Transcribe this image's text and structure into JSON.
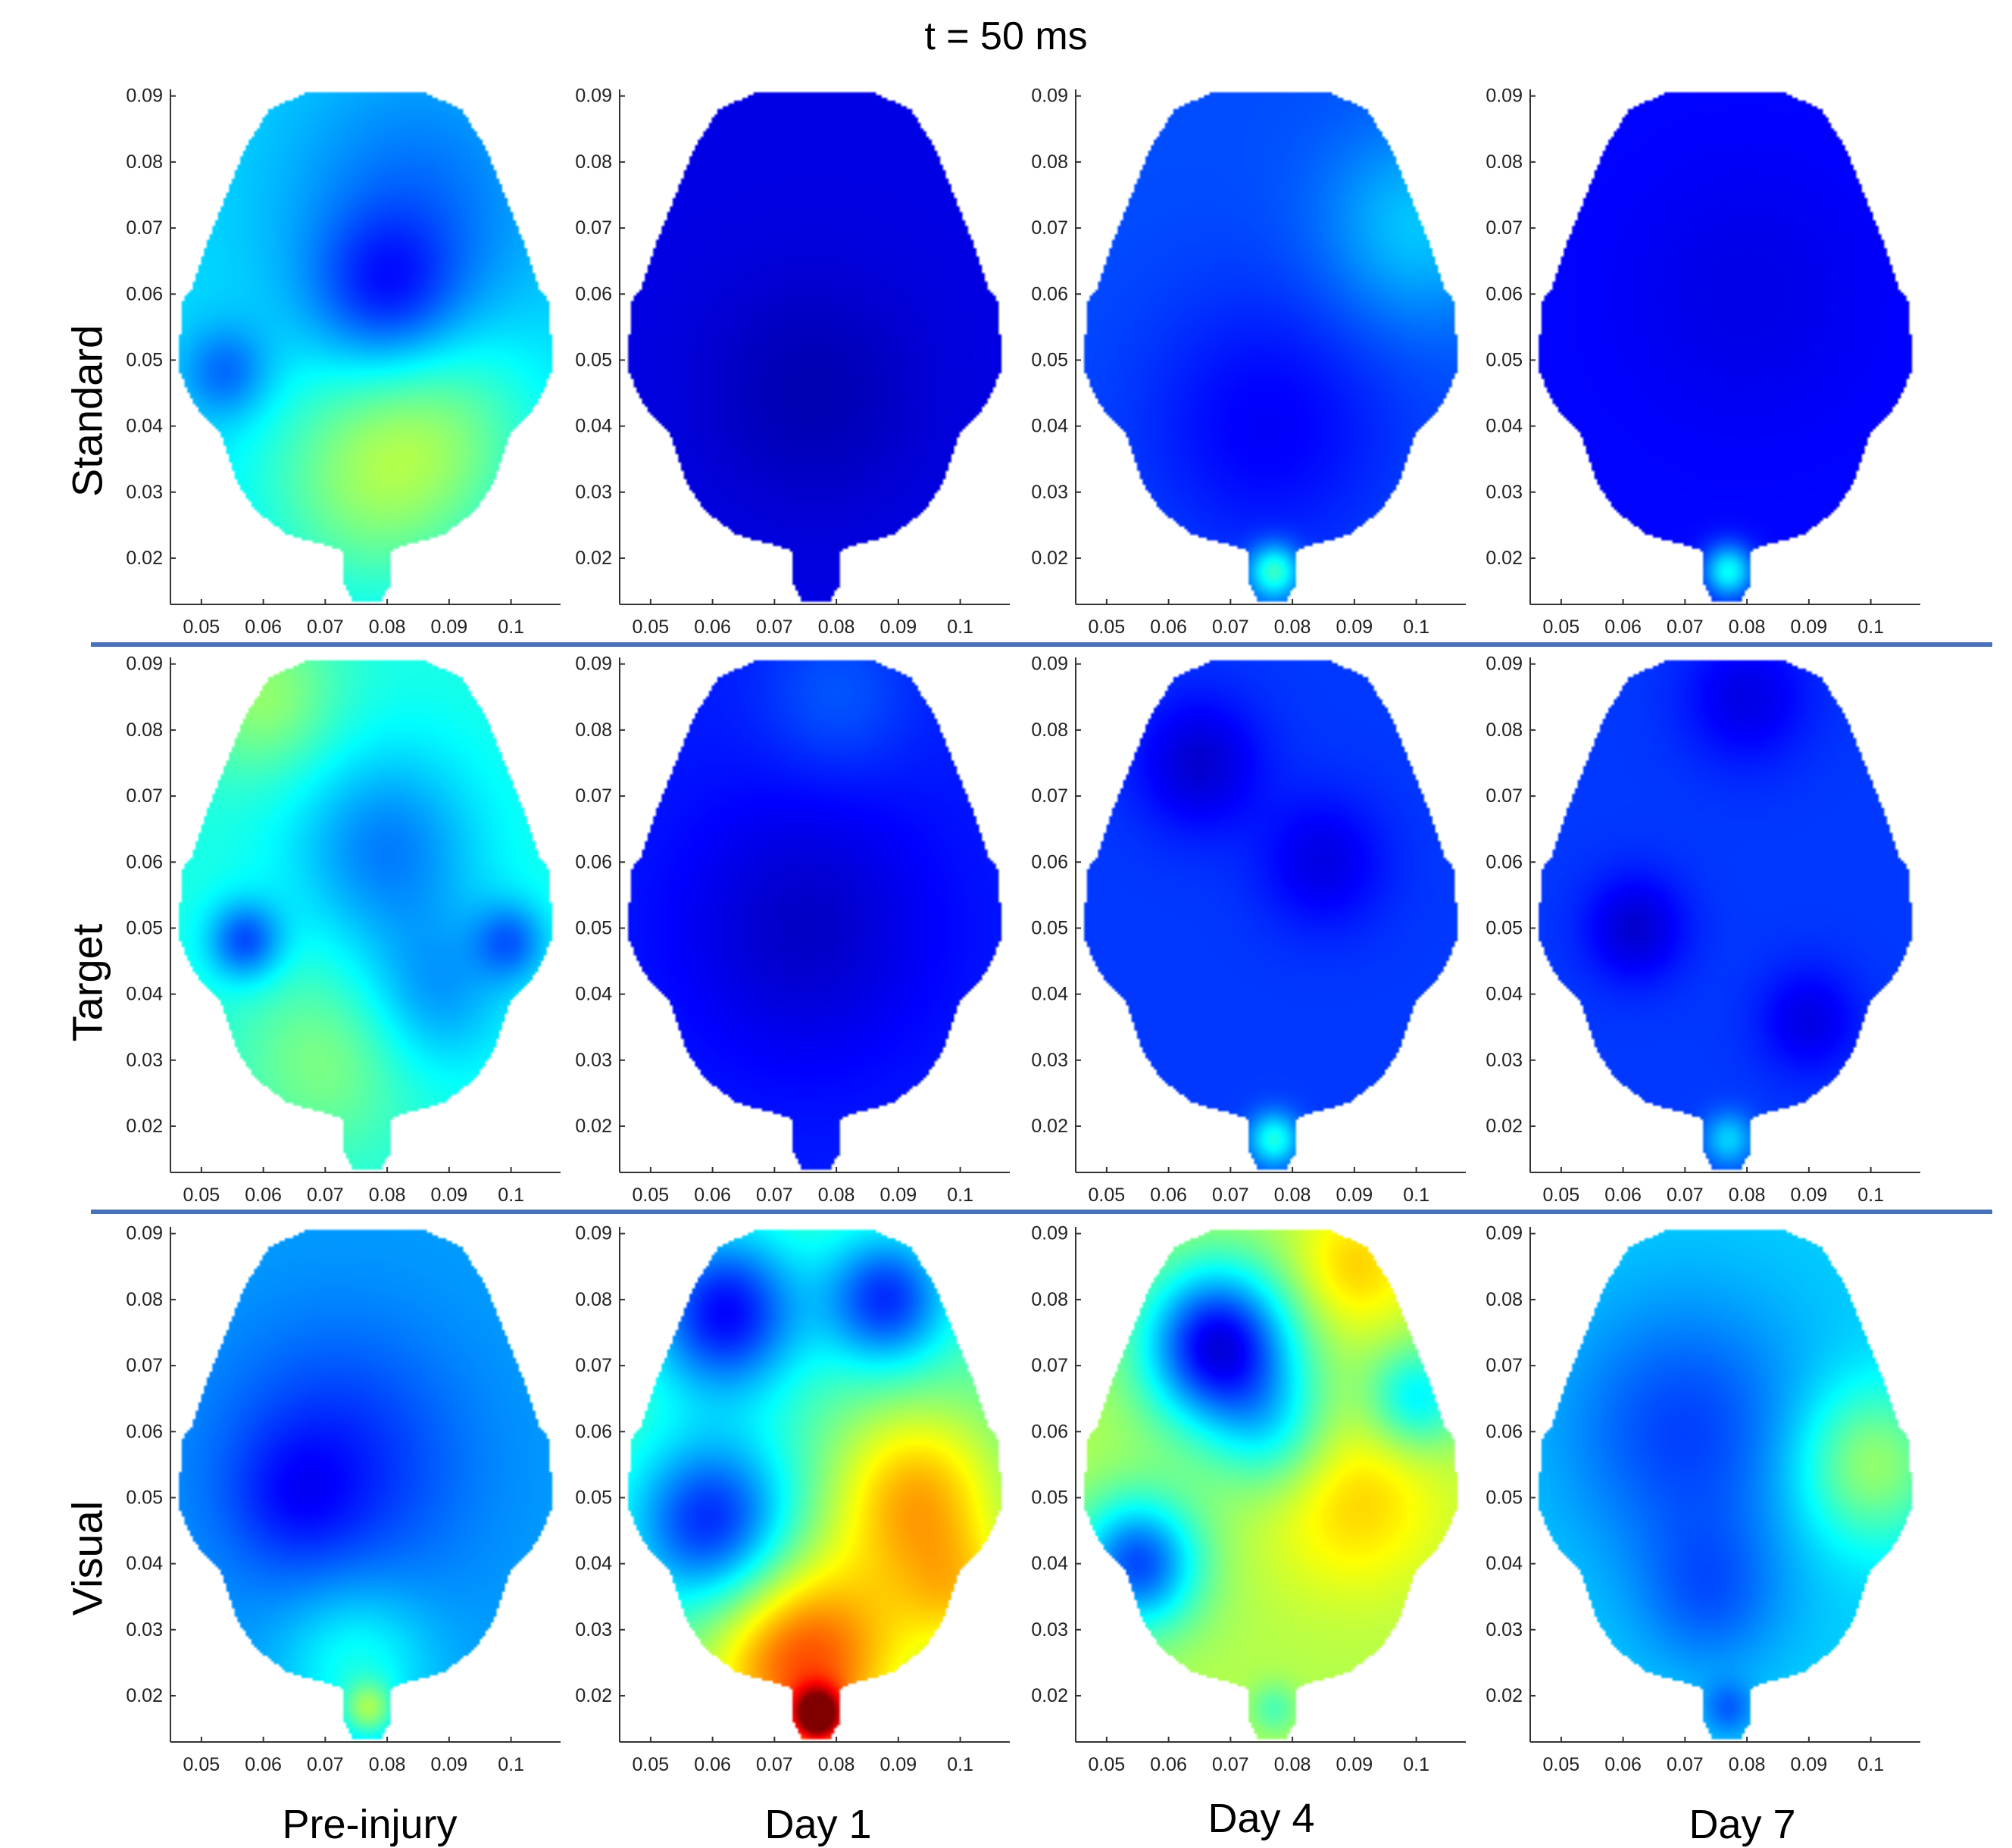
{
  "figure": {
    "title": "t = 50 ms",
    "rows": [
      {
        "label": "Standard"
      },
      {
        "label": "Target"
      },
      {
        "label": "Visual"
      }
    ],
    "columns": [
      {
        "label": "Pre-injury"
      },
      {
        "label": "Day 1"
      },
      {
        "label": "Day 4"
      },
      {
        "label": "Day 7"
      }
    ],
    "axes": {
      "x_ticks": [
        "0.05",
        "0.06",
        "0.07",
        "0.08",
        "0.09",
        "0.1"
      ],
      "y_ticks": [
        "0.09",
        "0.08",
        "0.07",
        "0.06",
        "0.05",
        "0.04",
        "0.03",
        "0.02"
      ],
      "xlim": [
        0.045,
        0.108
      ],
      "ylim": [
        0.013,
        0.091
      ]
    },
    "colors": {
      "divider": "#4a72b8",
      "colormap": [
        "#00008f",
        "#0000ff",
        "#0080ff",
        "#00ffff",
        "#80ff80",
        "#ffff00"
      ]
    },
    "maps": [
      [
        {
          "base": 0.34,
          "blobs": [
            [
              0.085,
              0.075,
              0.022,
              -0.1
            ],
            [
              0.077,
              0.032,
              0.018,
              0.16
            ],
            [
              0.09,
              0.04,
              0.016,
              0.1
            ],
            [
              0.08,
              0.06,
              0.012,
              -0.16
            ],
            [
              0.054,
              0.048,
              0.007,
              -0.12
            ]
          ]
        },
        {
          "base": 0.1,
          "blobs": [
            [
              0.076,
              0.045,
              0.018,
              -0.05
            ]
          ]
        },
        {
          "base": 0.2,
          "blobs": [
            [
              0.076,
              0.04,
              0.02,
              -0.08
            ],
            [
              0.1,
              0.07,
              0.015,
              0.12
            ],
            [
              0.077,
              0.018,
              0.004,
              0.25
            ]
          ]
        },
        {
          "base": 0.13,
          "blobs": [
            [
              0.08,
              0.06,
              0.02,
              -0.03
            ],
            [
              0.077,
              0.018,
              0.004,
              0.25
            ]
          ]
        }
      ],
      [
        {
          "base": 0.4,
          "blobs": [
            [
              0.06,
              0.085,
              0.012,
              0.12
            ],
            [
              0.08,
              0.062,
              0.015,
              -0.15
            ],
            [
              0.057,
              0.048,
              0.006,
              -0.2
            ],
            [
              0.088,
              0.04,
              0.012,
              -0.12
            ],
            [
              0.1,
              0.048,
              0.006,
              -0.15
            ],
            [
              0.07,
              0.03,
              0.014,
              0.1
            ]
          ]
        },
        {
          "base": 0.15,
          "blobs": [
            [
              0.08,
              0.085,
              0.012,
              0.06
            ],
            [
              0.075,
              0.05,
              0.02,
              -0.08
            ]
          ]
        },
        {
          "base": 0.18,
          "blobs": [
            [
              0.065,
              0.075,
              0.01,
              -0.1
            ],
            [
              0.085,
              0.06,
              0.01,
              -0.08
            ],
            [
              0.077,
              0.018,
              0.004,
              0.22
            ]
          ]
        },
        {
          "base": 0.18,
          "blobs": [
            [
              0.062,
              0.05,
              0.008,
              -0.1
            ],
            [
              0.09,
              0.036,
              0.008,
              -0.08
            ],
            [
              0.08,
              0.085,
              0.01,
              -0.08
            ],
            [
              0.077,
              0.018,
              0.004,
              0.15
            ]
          ]
        }
      ],
      [
        {
          "base": 0.28,
          "blobs": [
            [
              0.072,
              0.055,
              0.02,
              -0.12
            ],
            [
              0.065,
              0.05,
              0.01,
              -0.06
            ],
            [
              0.075,
              0.025,
              0.012,
              0.12
            ],
            [
              0.077,
              0.018,
              0.004,
              0.18
            ]
          ]
        },
        {
          "base": 0.45,
          "blobs": [
            [
              0.062,
              0.078,
              0.012,
              -0.32
            ],
            [
              0.088,
              0.08,
              0.01,
              -0.28
            ],
            [
              0.06,
              0.046,
              0.013,
              -0.3
            ],
            [
              0.093,
              0.05,
              0.014,
              0.25
            ],
            [
              0.075,
              0.025,
              0.016,
              0.35
            ],
            [
              0.077,
              0.017,
              0.004,
              0.45
            ],
            [
              0.1,
              0.035,
              0.01,
              0.15
            ]
          ]
        },
        {
          "base": 0.55,
          "blobs": [
            [
              0.068,
              0.073,
              0.012,
              -0.45
            ],
            [
              0.09,
              0.085,
              0.01,
              0.12
            ],
            [
              0.055,
              0.04,
              0.01,
              -0.35
            ],
            [
              0.09,
              0.05,
              0.014,
              0.12
            ],
            [
              0.1,
              0.065,
              0.008,
              -0.2
            ],
            [
              0.077,
              0.06,
              0.01,
              -0.15
            ],
            [
              0.077,
              0.018,
              0.004,
              -0.1
            ]
          ]
        },
        {
          "base": 0.33,
          "blobs": [
            [
              0.07,
              0.06,
              0.02,
              -0.14
            ],
            [
              0.1,
              0.055,
              0.012,
              0.2
            ],
            [
              0.074,
              0.035,
              0.012,
              -0.1
            ],
            [
              0.077,
              0.018,
              0.004,
              -0.1
            ]
          ]
        }
      ]
    ]
  }
}
